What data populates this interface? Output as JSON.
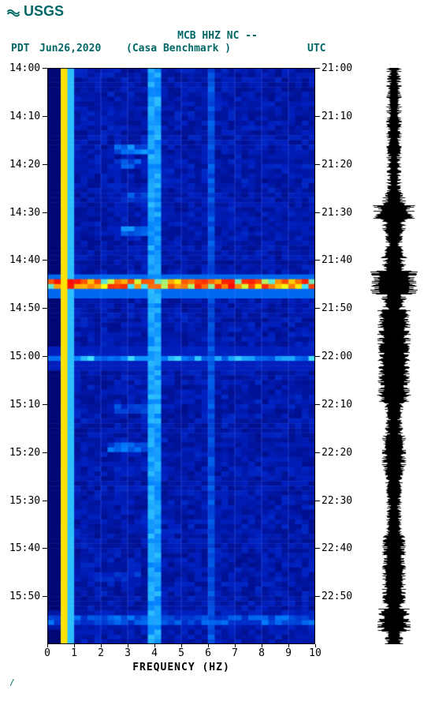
{
  "logo_text": "USGS",
  "title_line1": "MCB HHZ NC --",
  "title_line2": "(Casa Benchmark )",
  "tz_left": "PDT",
  "date": "Jun26,2020",
  "tz_right": "UTC",
  "xlabel": "FREQUENCY (HZ)",
  "footer": "/",
  "x_axis": {
    "min": 0,
    "max": 10,
    "step": 1,
    "labels": [
      "0",
      "1",
      "2",
      "3",
      "4",
      "5",
      "6",
      "7",
      "8",
      "9",
      "10"
    ]
  },
  "y_left": [
    {
      "t": 0.0,
      "label": "14:00"
    },
    {
      "t": 0.083,
      "label": "14:10"
    },
    {
      "t": 0.167,
      "label": "14:20"
    },
    {
      "t": 0.25,
      "label": "14:30"
    },
    {
      "t": 0.333,
      "label": "14:40"
    },
    {
      "t": 0.417,
      "label": "14:50"
    },
    {
      "t": 0.5,
      "label": "15:00"
    },
    {
      "t": 0.583,
      "label": "15:10"
    },
    {
      "t": 0.667,
      "label": "15:20"
    },
    {
      "t": 0.75,
      "label": "15:30"
    },
    {
      "t": 0.833,
      "label": "15:40"
    },
    {
      "t": 0.917,
      "label": "15:50"
    }
  ],
  "y_right": [
    {
      "t": 0.0,
      "label": "21:00"
    },
    {
      "t": 0.083,
      "label": "21:10"
    },
    {
      "t": 0.167,
      "label": "21:20"
    },
    {
      "t": 0.25,
      "label": "21:30"
    },
    {
      "t": 0.333,
      "label": "21:40"
    },
    {
      "t": 0.417,
      "label": "21:50"
    },
    {
      "t": 0.5,
      "label": "22:00"
    },
    {
      "t": 0.583,
      "label": "22:10"
    },
    {
      "t": 0.667,
      "label": "22:20"
    },
    {
      "t": 0.75,
      "label": "22:30"
    },
    {
      "t": 0.833,
      "label": "22:40"
    },
    {
      "t": 0.917,
      "label": "22:50"
    }
  ],
  "spectrogram": {
    "type": "heatmap",
    "width_cells": 40,
    "height_cells": 120,
    "freq_range": [
      0,
      10
    ],
    "colormap": {
      "low": "#000060",
      "midlow": "#0020c0",
      "mid": "#0080ff",
      "midhigh": "#40e0ff",
      "high": "#ffff00",
      "vhigh": "#ff8000",
      "peak": "#ff0000"
    },
    "base_color": "#0018b0",
    "noise_color": "#0030d0",
    "hot_band_freq": [
      0.2,
      0.8,
      0.99
    ],
    "hot_band_colors": [
      "#ff4000",
      "#ffff00",
      "#80ff80"
    ],
    "vertical_line": {
      "freq": 3.9,
      "color": "#60e0e0",
      "width": 0.05
    },
    "grid_lines": {
      "color": "#6080ff",
      "freqs": [
        1,
        2,
        3,
        4,
        5,
        6,
        7,
        8,
        9,
        10
      ]
    },
    "events": [
      {
        "t": 0.372,
        "strength": 1.0,
        "width": 1.0
      },
      {
        "t": 0.5,
        "strength": 0.6,
        "width": 0.8
      },
      {
        "t": 0.135,
        "strength": 0.5,
        "freq_center": 3.2,
        "width": 0.15
      },
      {
        "t": 0.16,
        "strength": 0.4,
        "freq_center": 3.0,
        "width": 0.15
      },
      {
        "t": 0.22,
        "strength": 0.4,
        "freq_center": 3.2,
        "width": 0.12
      },
      {
        "t": 0.28,
        "strength": 0.5,
        "freq_center": 3.1,
        "width": 0.12
      },
      {
        "t": 0.59,
        "strength": 0.4,
        "freq_center": 3.0,
        "width": 0.15
      },
      {
        "t": 0.655,
        "strength": 0.45,
        "freq_center": 3.0,
        "width": 0.2
      },
      {
        "t": 0.69,
        "strength": 0.3,
        "freq_center": 3.0,
        "width": 0.12
      },
      {
        "t": 0.88,
        "strength": 0.35,
        "freq_center": 2.5,
        "width": 0.2
      },
      {
        "t": 0.955,
        "strength": 0.45,
        "width": 0.8
      }
    ],
    "background_color": "#ffffff"
  },
  "waveform": {
    "color": "#000000",
    "base_amplitude": 0.25,
    "events": [
      {
        "t": 0.25,
        "amp": 0.9,
        "dur": 0.012
      },
      {
        "t": 0.372,
        "amp": 1.0,
        "dur": 0.02
      },
      {
        "t": 0.5,
        "amp": 0.7,
        "dur": 0.08
      },
      {
        "t": 0.668,
        "amp": 0.5,
        "dur": 0.03
      },
      {
        "t": 0.87,
        "amp": 0.5,
        "dur": 0.06
      },
      {
        "t": 0.958,
        "amp": 0.7,
        "dur": 0.02
      }
    ]
  },
  "title_color": "#006666",
  "text_color": "#000000",
  "label_fontsize": 13
}
